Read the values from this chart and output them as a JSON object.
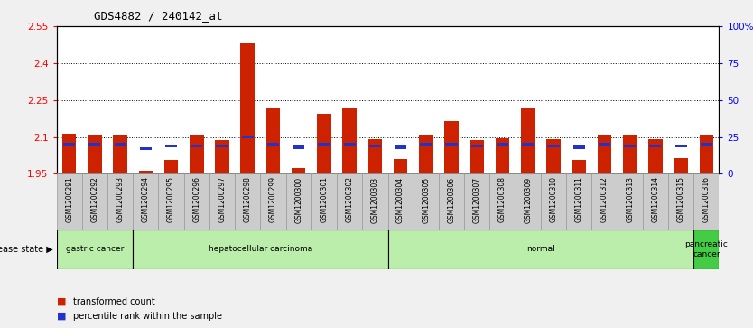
{
  "title": "GDS4882 / 240142_at",
  "samples": [
    "GSM1200291",
    "GSM1200292",
    "GSM1200293",
    "GSM1200294",
    "GSM1200295",
    "GSM1200296",
    "GSM1200297",
    "GSM1200298",
    "GSM1200299",
    "GSM1200300",
    "GSM1200301",
    "GSM1200302",
    "GSM1200303",
    "GSM1200304",
    "GSM1200305",
    "GSM1200306",
    "GSM1200307",
    "GSM1200308",
    "GSM1200309",
    "GSM1200310",
    "GSM1200311",
    "GSM1200312",
    "GSM1200313",
    "GSM1200314",
    "GSM1200315",
    "GSM1200316"
  ],
  "transformed_count": [
    2.112,
    2.108,
    2.108,
    1.962,
    2.005,
    2.108,
    2.087,
    2.48,
    2.22,
    1.975,
    2.195,
    2.22,
    2.092,
    2.01,
    2.108,
    2.165,
    2.088,
    2.095,
    2.22,
    2.092,
    2.005,
    2.108,
    2.11,
    2.092,
    2.015,
    2.108
  ],
  "percentile_rank": [
    20,
    20,
    20,
    17,
    19,
    19,
    19,
    25,
    20,
    18,
    20,
    20,
    19,
    18,
    20,
    20,
    19,
    20,
    20,
    19,
    18,
    20,
    19,
    19,
    19,
    20
  ],
  "ylim_left": [
    1.95,
    2.55
  ],
  "ylim_right": [
    0,
    100
  ],
  "yticks_left": [
    1.95,
    2.1,
    2.25,
    2.4,
    2.55
  ],
  "yticks_right": [
    0,
    25,
    50,
    75,
    100
  ],
  "ytick_labels_left": [
    "1.95",
    "2.1",
    "2.25",
    "2.4",
    "2.55"
  ],
  "ytick_labels_right": [
    "0",
    "25",
    "50",
    "75",
    "100%"
  ],
  "bar_color": "#cc2200",
  "pct_color": "#2233cc",
  "disease_groups": [
    {
      "label": "gastric cancer",
      "start": 0,
      "end": 3,
      "color": "#bbeeaa"
    },
    {
      "label": "hepatocellular carcinoma",
      "start": 3,
      "end": 13,
      "color": "#bbeeaa"
    },
    {
      "label": "normal",
      "start": 13,
      "end": 25,
      "color": "#bbeeaa"
    },
    {
      "label": "pancreatic\ncancer",
      "start": 25,
      "end": 26,
      "color": "#44cc44"
    }
  ],
  "bar_width": 0.55,
  "background_color": "#f0f0f0",
  "plot_bg": "#ffffff",
  "tick_label_bg": "#cccccc"
}
